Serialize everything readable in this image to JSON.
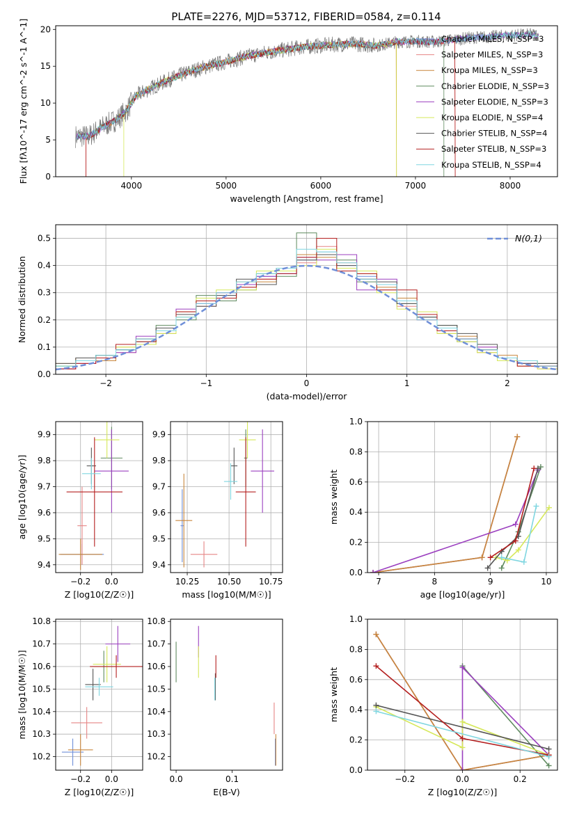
{
  "figure": {
    "title": "PLATE=2276, MJD=53712, FIBERID=0584, z=0.114"
  },
  "colors": [
    "#6f8fd8",
    "#e68585",
    "#c8863c",
    "#5f8a5f",
    "#9b3fbf",
    "#d6e85a",
    "#555555",
    "#b41f1f",
    "#7fd6e0"
  ],
  "chart_data": [
    {
      "type": "line",
      "id": "spectrum",
      "title": "PLATE=2276, MJD=53712, FIBERID=0584, z=0.114",
      "xlabel": "wavelength [Angstrom, rest frame]",
      "ylabel": "Flux [fλ10^-17 erg cm^-2 s^-1 A^-1]",
      "xlim": [
        3200,
        8500
      ],
      "ylim": [
        0,
        20.5
      ],
      "xticks": [
        4000,
        5000,
        6000,
        7000,
        8000
      ],
      "yticks": [
        0,
        5,
        10,
        15,
        20
      ],
      "grid": false,
      "legend_position": "upper-right",
      "continuum": {
        "wavelength": [
          3400,
          3550,
          3700,
          3850,
          3950,
          4050,
          4200,
          4400,
          4600,
          4800,
          5000,
          5200,
          5400,
          5600,
          5800,
          6000,
          6200,
          6400,
          6600,
          6800,
          7000,
          7200,
          7400,
          7600,
          7800,
          8000,
          8200
        ],
        "flux": [
          5.5,
          5.5,
          6.8,
          7.8,
          9.0,
          11.0,
          12.0,
          13.2,
          14.2,
          15.0,
          15.6,
          16.3,
          16.8,
          17.2,
          17.6,
          17.8,
          18.0,
          18.0,
          17.8,
          18.3,
          18.4,
          18.3,
          18.6,
          18.9,
          19.0,
          19.2,
          19.3
        ]
      },
      "series": [
        {
          "name": "Chabrier MILES, N_SSP=3"
        },
        {
          "name": "Salpeter MILES, N_SSP=3"
        },
        {
          "name": "Kroupa MILES, N_SSP=3"
        },
        {
          "name": "Chabrier ELODIE, N_SSP=3"
        },
        {
          "name": "Salpeter ELODIE, N_SSP=3"
        },
        {
          "name": "Kroupa ELODIE, N_SSP=4"
        },
        {
          "name": "Chabrier STELIB, N_SSP=4"
        },
        {
          "name": "Salpeter STELIB, N_SSP=3"
        },
        {
          "name": "Kroupa STELIB, N_SSP=4"
        }
      ]
    },
    {
      "type": "bar",
      "id": "residuals",
      "xlabel": "(data-model)/error",
      "ylabel": "Normed distribution",
      "xlim": [
        -2.5,
        2.5
      ],
      "ylim": [
        0,
        0.55
      ],
      "xticks": [
        -2,
        -1,
        0,
        1,
        2
      ],
      "yticks": [
        0.0,
        0.1,
        0.2,
        0.3,
        0.4,
        0.5
      ],
      "grid": true,
      "legend": "N(0,1)",
      "legend_position": "upper-right",
      "gaussian": {
        "mean": 0,
        "sigma": 1,
        "label": "N(0,1)"
      },
      "bin_edges": [
        -2.5,
        -2.3,
        -2.1,
        -1.9,
        -1.7,
        -1.5,
        -1.3,
        -1.1,
        -0.9,
        -0.7,
        -0.5,
        -0.3,
        -0.1,
        0.1,
        0.3,
        0.5,
        0.7,
        0.9,
        1.1,
        1.3,
        1.5,
        1.7,
        1.9,
        2.1,
        2.3,
        2.5
      ],
      "series": [
        {
          "values": [
            0.03,
            0.05,
            0.06,
            0.09,
            0.12,
            0.16,
            0.21,
            0.26,
            0.29,
            0.33,
            0.36,
            0.37,
            0.42,
            0.45,
            0.4,
            0.36,
            0.33,
            0.27,
            0.21,
            0.17,
            0.13,
            0.09,
            0.06,
            0.04,
            0.03
          ]
        },
        {
          "values": [
            0.02,
            0.04,
            0.07,
            0.08,
            0.13,
            0.17,
            0.22,
            0.25,
            0.3,
            0.32,
            0.35,
            0.38,
            0.41,
            0.47,
            0.41,
            0.35,
            0.31,
            0.25,
            0.22,
            0.16,
            0.12,
            0.1,
            0.05,
            0.04,
            0.02
          ]
        },
        {
          "values": [
            0.04,
            0.06,
            0.05,
            0.1,
            0.11,
            0.15,
            0.23,
            0.27,
            0.28,
            0.34,
            0.34,
            0.39,
            0.44,
            0.43,
            0.39,
            0.37,
            0.32,
            0.28,
            0.2,
            0.15,
            0.14,
            0.08,
            0.07,
            0.03,
            0.03
          ]
        },
        {
          "values": [
            0.03,
            0.05,
            0.07,
            0.09,
            0.12,
            0.18,
            0.2,
            0.29,
            0.27,
            0.31,
            0.37,
            0.36,
            0.52,
            0.44,
            0.42,
            0.34,
            0.33,
            0.26,
            0.21,
            0.18,
            0.12,
            0.09,
            0.06,
            0.05,
            0.04
          ]
        },
        {
          "values": [
            0.02,
            0.04,
            0.06,
            0.08,
            0.14,
            0.16,
            0.24,
            0.26,
            0.3,
            0.33,
            0.36,
            0.37,
            0.43,
            0.42,
            0.44,
            0.31,
            0.35,
            0.27,
            0.2,
            0.17,
            0.13,
            0.1,
            0.05,
            0.04,
            0.03
          ]
        },
        {
          "values": [
            0.03,
            0.05,
            0.06,
            0.1,
            0.11,
            0.15,
            0.21,
            0.28,
            0.31,
            0.31,
            0.38,
            0.38,
            0.4,
            0.46,
            0.39,
            0.38,
            0.3,
            0.24,
            0.23,
            0.15,
            0.12,
            0.08,
            0.05,
            0.05,
            0.02
          ]
        },
        {
          "values": [
            0.04,
            0.06,
            0.07,
            0.09,
            0.13,
            0.17,
            0.22,
            0.25,
            0.29,
            0.35,
            0.33,
            0.39,
            0.42,
            0.44,
            0.4,
            0.35,
            0.34,
            0.26,
            0.21,
            0.18,
            0.15,
            0.11,
            0.06,
            0.04,
            0.04
          ]
        },
        {
          "values": [
            0.02,
            0.04,
            0.06,
            0.11,
            0.12,
            0.16,
            0.23,
            0.27,
            0.28,
            0.32,
            0.35,
            0.37,
            0.43,
            0.5,
            0.38,
            0.37,
            0.31,
            0.31,
            0.22,
            0.16,
            0.13,
            0.09,
            0.06,
            0.03,
            0.03
          ]
        },
        {
          "values": [
            0.03,
            0.05,
            0.07,
            0.09,
            0.13,
            0.16,
            0.21,
            0.26,
            0.3,
            0.34,
            0.37,
            0.39,
            0.46,
            0.45,
            0.41,
            0.35,
            0.33,
            0.27,
            0.2,
            0.17,
            0.13,
            0.09,
            0.06,
            0.05,
            0.03
          ]
        }
      ]
    },
    {
      "type": "scatter",
      "id": "age-vs-z",
      "xlabel": "Z [log10(Z/Z☉)]",
      "ylabel": "age [log10(age/yr)]",
      "xlim": [
        -0.36,
        0.2
      ],
      "ylim": [
        9.37,
        9.95
      ],
      "xticks": [
        -0.2,
        0.0
      ],
      "yticks": [
        9.4,
        9.5,
        9.6,
        9.7,
        9.8,
        9.9
      ],
      "grid": true,
      "points": [
        {
          "series": 0,
          "x": -0.19,
          "xerr": 0.14,
          "y": 9.44,
          "yerr": 0.04
        },
        {
          "series": 1,
          "x": -0.19,
          "xerr": 0.03,
          "y": 9.55,
          "yerr": 0.15
        },
        {
          "series": 2,
          "x": -0.2,
          "xerr": 0.14,
          "y": 9.44,
          "yerr": 0.06
        },
        {
          "series": 3,
          "x": 0.0,
          "xerr": 0.07,
          "y": 9.81,
          "yerr": 0.12
        },
        {
          "series": 4,
          "x": 0.0,
          "xerr": 0.11,
          "y": 9.76,
          "yerr": 0.16
        },
        {
          "series": 5,
          "x": -0.03,
          "xerr": 0.08,
          "y": 9.88,
          "yerr": 0.07
        },
        {
          "series": 6,
          "x": -0.13,
          "xerr": 0.03,
          "y": 9.78,
          "yerr": 0.07
        },
        {
          "series": 7,
          "x": -0.11,
          "xerr": 0.18,
          "y": 9.68,
          "yerr": 0.21
        },
        {
          "series": 8,
          "x": -0.13,
          "xerr": 0.06,
          "y": 9.75,
          "yerr": 0.06
        }
      ]
    },
    {
      "type": "scatter",
      "id": "age-vs-mass",
      "xlabel": "mass [log10(M/M☉)]",
      "ylabel": "",
      "xlim": [
        10.15,
        10.82
      ],
      "ylim": [
        9.37,
        9.95
      ],
      "xticks": [
        10.25,
        10.5,
        10.75
      ],
      "yticks": [
        9.4,
        9.5,
        9.6,
        9.7,
        9.8,
        9.9
      ],
      "grid": true,
      "points": [
        {
          "series": 0,
          "x": 10.22,
          "xerr": 0.01,
          "y": 9.55,
          "yerr": 0.14
        },
        {
          "series": 1,
          "x": 10.35,
          "xerr": 0.08,
          "y": 9.44,
          "yerr": 0.05
        },
        {
          "series": 2,
          "x": 10.23,
          "xerr": 0.05,
          "y": 9.57,
          "yerr": 0.18
        },
        {
          "series": 3,
          "x": 10.6,
          "xerr": 0.01,
          "y": 9.81,
          "yerr": 0.11
        },
        {
          "series": 4,
          "x": 10.7,
          "xerr": 0.07,
          "y": 9.76,
          "yerr": 0.16
        },
        {
          "series": 5,
          "x": 10.61,
          "xerr": 0.05,
          "y": 9.88,
          "yerr": 0.07
        },
        {
          "series": 6,
          "x": 10.53,
          "xerr": 0.02,
          "y": 9.78,
          "yerr": 0.07
        },
        {
          "series": 7,
          "x": 10.6,
          "xerr": 0.06,
          "y": 9.68,
          "yerr": 0.21
        },
        {
          "series": 8,
          "x": 10.51,
          "xerr": 0.04,
          "y": 9.72,
          "yerr": 0.07
        }
      ]
    },
    {
      "type": "line",
      "id": "weight-vs-age",
      "xlabel": "age [log10(age/yr)]",
      "ylabel": "mass weight",
      "xlim": [
        6.8,
        10.2
      ],
      "ylim": [
        0,
        1.0
      ],
      "xticks": [
        7,
        8,
        9,
        10
      ],
      "yticks": [
        0.0,
        0.2,
        0.4,
        0.6,
        0.8,
        1.0
      ],
      "grid": true,
      "series": [
        {
          "x": [
            6.9,
            8.85,
            9.48
          ],
          "y": [
            0.0,
            0.1,
            0.9
          ]
        },
        {
          "x": [
            6.9,
            8.85,
            9.48
          ],
          "y": [
            0.0,
            0.1,
            0.9
          ]
        },
        {
          "x": [
            6.9,
            8.85,
            9.48
          ],
          "y": [
            0.0,
            0.1,
            0.9
          ]
        },
        {
          "x": [
            9.2,
            9.5,
            9.9
          ],
          "y": [
            0.03,
            0.27,
            0.7
          ]
        },
        {
          "x": [
            6.9,
            9.45,
            9.85
          ],
          "y": [
            0.0,
            0.32,
            0.68
          ]
        },
        {
          "x": [
            9.1,
            9.3,
            9.5,
            10.05
          ],
          "y": [
            0.1,
            0.08,
            0.15,
            0.43
          ]
        },
        {
          "x": [
            8.95,
            9.2,
            9.5,
            9.85
          ],
          "y": [
            0.03,
            0.14,
            0.24,
            0.69
          ]
        },
        {
          "x": [
            9.0,
            9.45,
            9.78
          ],
          "y": [
            0.1,
            0.21,
            0.69
          ]
        },
        {
          "x": [
            9.2,
            9.6,
            9.82
          ],
          "y": [
            0.1,
            0.07,
            0.44
          ]
        }
      ]
    },
    {
      "type": "scatter",
      "id": "mass-vs-z",
      "xlabel": "Z [log10(Z/Z☉)]",
      "ylabel": "mass [log10(M/M☉)]",
      "xlim": [
        -0.36,
        0.2
      ],
      "ylim": [
        10.14,
        10.81
      ],
      "xticks": [
        -0.2,
        0.0
      ],
      "yticks": [
        10.2,
        10.3,
        10.4,
        10.5,
        10.6,
        10.7,
        10.8
      ],
      "grid": true,
      "points": [
        {
          "series": 0,
          "x": -0.25,
          "xerr": 0.07,
          "y": 10.22,
          "yerr": 0.06
        },
        {
          "series": 1,
          "x": -0.16,
          "xerr": 0.1,
          "y": 10.35,
          "yerr": 0.07
        },
        {
          "series": 2,
          "x": -0.2,
          "xerr": 0.08,
          "y": 10.23,
          "yerr": 0.07
        },
        {
          "series": 3,
          "x": -0.05,
          "xerr": 0.08,
          "y": 10.6,
          "yerr": 0.07
        },
        {
          "series": 4,
          "x": 0.04,
          "xerr": 0.08,
          "y": 10.7,
          "yerr": 0.08
        },
        {
          "series": 5,
          "x": -0.03,
          "xerr": 0.09,
          "y": 10.61,
          "yerr": 0.08
        },
        {
          "series": 6,
          "x": -0.12,
          "xerr": 0.05,
          "y": 10.52,
          "yerr": 0.07
        },
        {
          "series": 7,
          "x": 0.03,
          "xerr": 0.17,
          "y": 10.6,
          "yerr": 0.05
        },
        {
          "series": 8,
          "x": -0.08,
          "xerr": 0.09,
          "y": 10.51,
          "yerr": 0.04
        }
      ]
    },
    {
      "type": "scatter",
      "id": "mass-vs-ebv",
      "xlabel": "E(B-V)",
      "ylabel": "",
      "xlim": [
        -0.01,
        0.19
      ],
      "ylim": [
        10.14,
        10.81
      ],
      "xticks": [
        0.0,
        0.1
      ],
      "yticks": [
        10.2,
        10.3,
        10.4,
        10.5,
        10.6,
        10.7,
        10.8
      ],
      "grid": false,
      "points": [
        {
          "series": 0,
          "x": 0.177,
          "y": 10.22,
          "yerr": 0.06
        },
        {
          "series": 1,
          "x": 0.175,
          "y": 10.37,
          "yerr": 0.07
        },
        {
          "series": 2,
          "x": 0.178,
          "y": 10.23,
          "yerr": 0.07
        },
        {
          "series": 3,
          "x": 0.0,
          "y": 10.62,
          "yerr": 0.09
        },
        {
          "series": 4,
          "x": 0.04,
          "y": 10.71,
          "yerr": 0.07
        },
        {
          "series": 5,
          "x": 0.04,
          "y": 10.62,
          "yerr": 0.07
        },
        {
          "series": 6,
          "x": 0.07,
          "y": 10.51,
          "yerr": 0.06
        },
        {
          "series": 7,
          "x": 0.071,
          "y": 10.6,
          "yerr": 0.05
        },
        {
          "series": 8,
          "x": 0.069,
          "y": 10.5,
          "yerr": 0.05
        }
      ]
    },
    {
      "type": "line",
      "id": "weight-vs-z",
      "xlabel": "Z [log10(Z/Z☉)]",
      "ylabel": "mass weight",
      "xlim": [
        -0.33,
        0.33
      ],
      "ylim": [
        0,
        1.0
      ],
      "xticks": [
        -0.2,
        0.0,
        0.2
      ],
      "yticks": [
        0.0,
        0.2,
        0.4,
        0.6,
        0.8,
        1.0
      ],
      "grid": true,
      "series": [
        {
          "x": [
            -0.3,
            0.0,
            0.3
          ],
          "y": [
            0.9,
            0.0,
            0.1
          ]
        },
        {
          "x": [
            -0.3,
            0.0,
            0.3
          ],
          "y": [
            0.9,
            0.0,
            0.1
          ]
        },
        {
          "x": [
            -0.3,
            0.0,
            0.3
          ],
          "y": [
            0.9,
            0.0,
            0.1
          ]
        },
        {
          "x": [
            0.0,
            0.3
          ],
          "y": [
            0.69,
            0.03
          ]
        },
        {
          "x": [
            0.0,
            0.0,
            0.3
          ],
          "y": [
            0.0,
            0.68,
            0.1
          ]
        },
        {
          "x": [
            -0.3,
            0.0,
            0.0,
            0.3
          ],
          "y": [
            0.42,
            0.15,
            0.32,
            0.1
          ]
        },
        {
          "x": [
            -0.3,
            0.3
          ],
          "y": [
            0.43,
            0.14
          ]
        },
        {
          "x": [
            -0.3,
            0.0,
            0.3
          ],
          "y": [
            0.69,
            0.21,
            0.1
          ]
        },
        {
          "x": [
            -0.3,
            0.3
          ],
          "y": [
            0.39,
            0.09
          ]
        }
      ]
    }
  ]
}
